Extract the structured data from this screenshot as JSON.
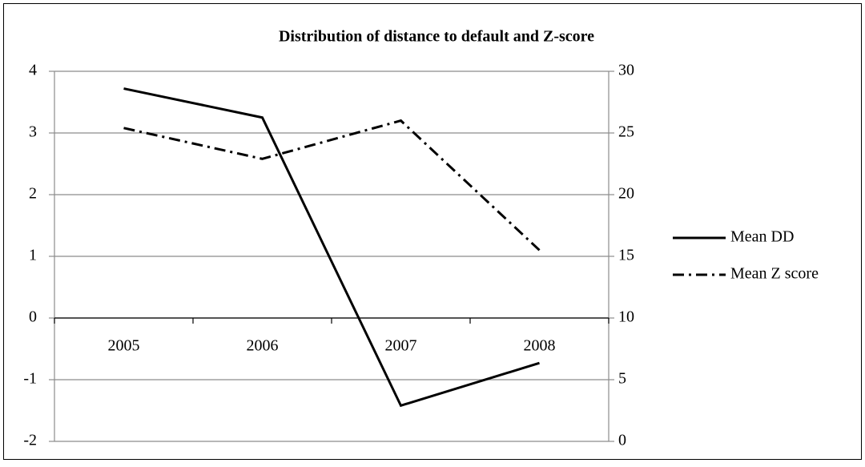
{
  "chart_data": {
    "type": "line",
    "title": "Distribution of  distance to default and Z-score",
    "categories": [
      "2005",
      "2006",
      "2007",
      "2008"
    ],
    "series": [
      {
        "name": "Mean DD",
        "color": "#000000",
        "line_style": "solid",
        "values": [
          3.72,
          3.25,
          -1.42,
          -0.73
        ]
      },
      {
        "name": "Mean Z score",
        "color": "#000000",
        "line_style": "dashdot",
        "axis": "y2",
        "values": [
          25.4,
          22.9,
          26.0,
          15.5
        ]
      }
    ],
    "ylim": [
      -2,
      4
    ],
    "yticks": [
      -2,
      -1,
      0,
      1,
      2,
      3,
      4
    ],
    "y2lim": [
      0,
      30
    ],
    "y2ticks": [
      0,
      5,
      10,
      15,
      20,
      25,
      30
    ],
    "grid": true,
    "legend": "right"
  }
}
